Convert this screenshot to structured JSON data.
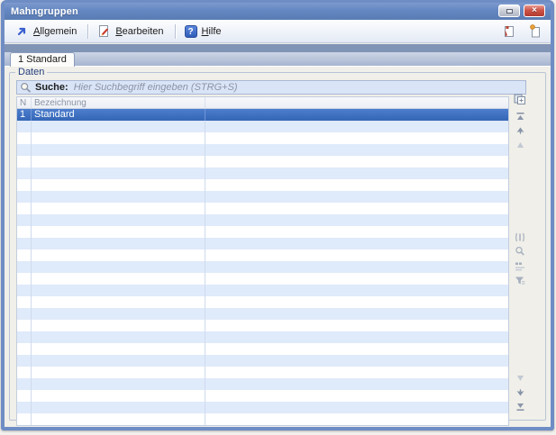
{
  "window": {
    "title": "Mahngruppen"
  },
  "titlebar": {
    "close_glyph": "×"
  },
  "toolbar": {
    "buttons": [
      {
        "label": "Allgemein"
      },
      {
        "label": "Bearbeiten"
      },
      {
        "label": "Hilfe"
      }
    ],
    "help_glyph": "?"
  },
  "tabs": [
    {
      "label": "1 Standard",
      "active": true
    }
  ],
  "groupbox": {
    "label": "Daten"
  },
  "search": {
    "label": "Suche:",
    "placeholder": "Hier Suchbegriff eingeben (STRG+S)"
  },
  "table": {
    "columns": [
      "N",
      "Bezeichnung",
      ""
    ],
    "rows": [
      {
        "n": "1",
        "bezeichnung": "Standard",
        "selected": true
      }
    ],
    "empty_row_count": 26
  },
  "colors": {
    "titlebar_blue": "#6487c2",
    "window_border": "#6f8dc5",
    "selected_row": "#3f70c0",
    "stripe_blue": "#dfeafa",
    "search_bg": "#d9e4f6",
    "close_red": "#cf5448"
  }
}
